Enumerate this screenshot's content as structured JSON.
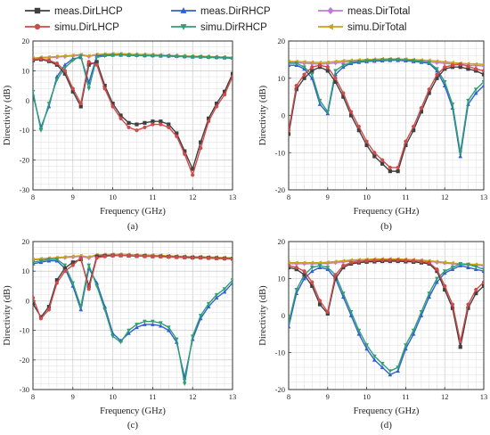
{
  "legend": [
    {
      "label": "meas.DirLHCP",
      "color": "#404040",
      "marker": "square"
    },
    {
      "label": "meas.DirRHCP",
      "color": "#2f5fd0",
      "marker": "triangle"
    },
    {
      "label": "meas.DirTotal",
      "color": "#c07ad8",
      "marker": "diamond"
    },
    {
      "label": "simu.DirLHCP",
      "color": "#d04a4a",
      "marker": "circle"
    },
    {
      "label": "simu.DirRHCP",
      "color": "#2e9f72",
      "marker": "triangle-down"
    },
    {
      "label": "simu.DirTotal",
      "color": "#c9a21a",
      "marker": "triangle-left"
    }
  ],
  "chart_data": [
    {
      "type": "line",
      "caption": "(a)",
      "xlabel": "Frequency (GHz)",
      "ylabel": "Directivity (dB)",
      "xlim": [
        8,
        13
      ],
      "ylim": [
        -30,
        20
      ],
      "xticks": [
        "8",
        "9",
        "10",
        "11",
        "12",
        "13"
      ],
      "yticks": [
        "-30",
        "-20",
        "-10",
        "0",
        "10",
        "20"
      ],
      "grid": true,
      "x": [
        8.0,
        8.2,
        8.4,
        8.6,
        8.8,
        9.0,
        9.2,
        9.4,
        9.6,
        9.8,
        10.0,
        10.2,
        10.4,
        10.6,
        10.8,
        11.0,
        11.2,
        11.4,
        11.6,
        11.8,
        12.0,
        12.2,
        12.4,
        12.6,
        12.8,
        13.0
      ],
      "series": [
        {
          "key": "meas_lhcp",
          "values": [
            13.5,
            13.8,
            13.2,
            12,
            9,
            3,
            -2,
            12,
            13,
            5,
            -1,
            -5,
            -7.5,
            -8,
            -7.5,
            -7,
            -7,
            -8,
            -11,
            -17,
            -23,
            -14,
            -6,
            -1,
            3,
            9
          ]
        },
        {
          "key": "simu_lhcp",
          "values": [
            13.8,
            14,
            13.5,
            12.5,
            10,
            4,
            -1,
            13,
            12,
            4,
            -2,
            -6,
            -9,
            -10,
            -9,
            -8,
            -8,
            -9,
            -12,
            -18,
            -25,
            -16,
            -7,
            -2,
            2,
            8
          ]
        },
        {
          "key": "meas_rhcp",
          "values": [
            2,
            -9,
            -2,
            8,
            12,
            14,
            14.5,
            6,
            15,
            15.2,
            15.3,
            15.3,
            15.2,
            15.2,
            15.1,
            15.1,
            15,
            15,
            14.9,
            14.8,
            14.7,
            14.7,
            14.6,
            14.5,
            14.4,
            14.3
          ]
        },
        {
          "key": "simu_rhcp",
          "values": [
            3,
            -10,
            -1,
            7,
            11,
            13.5,
            15,
            4,
            14.5,
            15,
            15.2,
            15.3,
            15.2,
            15.1,
            15.1,
            15,
            15,
            14.9,
            14.8,
            14.7,
            14.6,
            14.6,
            14.5,
            14.4,
            14.3,
            14.2
          ]
        },
        {
          "key": "meas_total",
          "values": [
            14,
            14.3,
            14.4,
            14.6,
            14.8,
            15,
            15.2,
            14.8,
            15.3,
            15.4,
            15.5,
            15.5,
            15.4,
            15.4,
            15.3,
            15.2,
            15.1,
            15,
            15,
            14.9,
            14.8,
            14.7,
            14.7,
            14.6,
            14.5,
            14.4
          ]
        },
        {
          "key": "simu_total",
          "values": [
            14.2,
            14.5,
            14.6,
            14.8,
            15,
            15.2,
            15.4,
            15,
            15.5,
            15.6,
            15.7,
            15.7,
            15.6,
            15.5,
            15.5,
            15.4,
            15.3,
            15.2,
            15.1,
            15,
            14.9,
            14.9,
            14.8,
            14.7,
            14.6,
            14.5
          ]
        }
      ]
    },
    {
      "type": "line",
      "caption": "(b)",
      "xlabel": "Frequency (GHz)",
      "ylabel": "Directivity (dB)",
      "xlim": [
        8,
        13
      ],
      "ylim": [
        -20,
        20
      ],
      "xticks": [
        "8",
        "9",
        "10",
        "11",
        "12",
        "13"
      ],
      "yticks": [
        "-20",
        "-10",
        "0",
        "10",
        "20"
      ],
      "grid": true,
      "x": [
        8.0,
        8.2,
        8.4,
        8.6,
        8.8,
        9.0,
        9.2,
        9.4,
        9.6,
        9.8,
        10.0,
        10.2,
        10.4,
        10.6,
        10.8,
        11.0,
        11.2,
        11.4,
        11.6,
        11.8,
        12.0,
        12.2,
        12.4,
        12.6,
        12.8,
        13.0
      ],
      "series": [
        {
          "key": "meas_lhcp",
          "values": [
            -5,
            7,
            10,
            12,
            13,
            12,
            9,
            5,
            0,
            -4,
            -8,
            -11,
            -13,
            -15,
            -15,
            -8,
            -4,
            1,
            6,
            10,
            12.5,
            13,
            13,
            12.5,
            12,
            11
          ]
        },
        {
          "key": "simu_lhcp",
          "values": [
            -4,
            8,
            11,
            13,
            13.5,
            13,
            10,
            6,
            1,
            -3,
            -7,
            -10,
            -12,
            -14,
            -14,
            -7,
            -3,
            2,
            7,
            11,
            13,
            13.5,
            13.8,
            13.2,
            12.5,
            12
          ]
        },
        {
          "key": "meas_rhcp",
          "values": [
            13.5,
            13.5,
            12.5,
            10,
            3,
            0.5,
            11,
            13,
            14,
            14.3,
            14.5,
            14.6,
            14.7,
            14.8,
            14.8,
            14.7,
            14.5,
            14.3,
            14,
            12,
            8,
            2,
            -11,
            3,
            6,
            8
          ]
        },
        {
          "key": "simu_rhcp",
          "values": [
            14,
            14,
            13,
            11,
            4,
            1,
            12,
            13.5,
            14.2,
            14.5,
            14.7,
            14.8,
            14.9,
            15,
            15,
            14.9,
            14.7,
            14.5,
            14.2,
            12.5,
            9,
            3,
            -10,
            4,
            7,
            9
          ]
        },
        {
          "key": "meas_total",
          "values": [
            14.2,
            14.2,
            14,
            13.9,
            13.8,
            13.9,
            14.1,
            14.3,
            14.5,
            14.6,
            14.7,
            14.8,
            14.9,
            15,
            15,
            14.9,
            14.8,
            14.6,
            14.4,
            14.2,
            14,
            13.8,
            13.6,
            13.5,
            13.4,
            13.3
          ]
        },
        {
          "key": "simu_total",
          "values": [
            14.5,
            14.5,
            14.4,
            14.3,
            14.2,
            14.3,
            14.5,
            14.7,
            14.8,
            14.9,
            15,
            15.1,
            15.2,
            15.2,
            15.2,
            15.1,
            15,
            14.9,
            14.8,
            14.6,
            14.4,
            14.2,
            14,
            13.9,
            13.8,
            13.7
          ]
        }
      ]
    },
    {
      "type": "line",
      "caption": "(c)",
      "xlabel": "Frequency (GHz)",
      "ylabel": "Directivity (dB)",
      "xlim": [
        8,
        13
      ],
      "ylim": [
        -30,
        20
      ],
      "xticks": [
        "8",
        "9",
        "10",
        "11",
        "12",
        "13"
      ],
      "yticks": [
        "-30",
        "-20",
        "-10",
        "0",
        "10",
        "20"
      ],
      "grid": true,
      "x": [
        8.0,
        8.2,
        8.4,
        8.6,
        8.8,
        9.0,
        9.2,
        9.4,
        9.6,
        9.8,
        10.0,
        10.2,
        10.4,
        10.6,
        10.8,
        11.0,
        11.2,
        11.4,
        11.6,
        11.8,
        12.0,
        12.2,
        12.4,
        12.6,
        12.8,
        13.0
      ],
      "series": [
        {
          "key": "meas_lhcp",
          "values": [
            -1,
            -5.5,
            -2,
            7,
            11,
            13,
            14,
            5,
            15,
            15.2,
            15.3,
            15.3,
            15.2,
            15.1,
            15.1,
            15,
            15,
            14.9,
            14.8,
            14.7,
            14.6,
            14.6,
            14.5,
            14.4,
            14.3,
            14.2
          ]
        },
        {
          "key": "simu_lhcp",
          "values": [
            1,
            -6,
            -3,
            6,
            10,
            12,
            14.5,
            4,
            14.5,
            15,
            15.2,
            15.3,
            15.2,
            15.1,
            15,
            15,
            14.9,
            14.8,
            14.7,
            14.6,
            14.5,
            14.5,
            14.4,
            14.3,
            14.2,
            14.1
          ]
        },
        {
          "key": "meas_rhcp",
          "values": [
            12.5,
            13,
            13.5,
            13.5,
            11,
            5,
            -3,
            11,
            6,
            -2,
            -11,
            -13.5,
            -11,
            -9,
            -8,
            -8,
            -8.5,
            -10,
            -14,
            -26,
            -13,
            -6,
            -2,
            1,
            3,
            6
          ]
        },
        {
          "key": "simu_rhcp",
          "values": [
            13,
            13.5,
            14,
            14,
            12,
            6,
            -2,
            12,
            5,
            -3,
            -12,
            -14,
            -10,
            -8,
            -7,
            -7,
            -7.5,
            -9,
            -13,
            -28,
            -12,
            -5,
            -1,
            2,
            4,
            7
          ]
        },
        {
          "key": "meas_total",
          "values": [
            13.8,
            14,
            14.2,
            14.4,
            14.6,
            14.8,
            15,
            14.5,
            15.3,
            15.4,
            15.5,
            15.5,
            15.4,
            15.3,
            15.3,
            15.2,
            15.1,
            15,
            14.9,
            14.8,
            14.7,
            14.7,
            14.6,
            14.5,
            14.4,
            14.3
          ]
        },
        {
          "key": "simu_total",
          "values": [
            14,
            14.2,
            14.4,
            14.6,
            14.8,
            15,
            15.2,
            14.8,
            15.5,
            15.6,
            15.7,
            15.7,
            15.6,
            15.5,
            15.5,
            15.4,
            15.3,
            15.2,
            15.1,
            15,
            14.9,
            14.9,
            14.8,
            14.7,
            14.6,
            14.5
          ]
        }
      ]
    },
    {
      "type": "line",
      "caption": "(d)",
      "xlabel": "Frequency (GHz)",
      "ylabel": "Directivity (dB)",
      "xlim": [
        8,
        13
      ],
      "ylim": [
        -20,
        20
      ],
      "xticks": [
        "8",
        "9",
        "10",
        "11",
        "12",
        "13"
      ],
      "yticks": [
        "-20",
        "-10",
        "0",
        "10",
        "20"
      ],
      "grid": true,
      "x": [
        8.0,
        8.2,
        8.4,
        8.6,
        8.8,
        9.0,
        9.2,
        9.4,
        9.6,
        9.8,
        10.0,
        10.2,
        10.4,
        10.6,
        10.8,
        11.0,
        11.2,
        11.4,
        11.6,
        11.8,
        12.0,
        12.2,
        12.4,
        12.6,
        12.8,
        13.0
      ],
      "series": [
        {
          "key": "meas_lhcp",
          "values": [
            13,
            12.5,
            11,
            8,
            3,
            0.5,
            10,
            13,
            14,
            14.3,
            14.5,
            14.6,
            14.7,
            14.7,
            14.7,
            14.6,
            14.5,
            14.3,
            14,
            12,
            7,
            2,
            -8.5,
            2,
            6,
            8
          ]
        },
        {
          "key": "simu_lhcp",
          "values": [
            13.5,
            13,
            12,
            9,
            4,
            1,
            11,
            13.5,
            14.3,
            14.6,
            14.8,
            14.9,
            15,
            15,
            15,
            14.9,
            14.8,
            14.6,
            14.3,
            12.5,
            8,
            3,
            -7,
            3,
            7,
            9
          ]
        },
        {
          "key": "meas_rhcp",
          "values": [
            -3,
            6,
            10,
            12,
            13,
            12.5,
            10,
            5,
            0,
            -5,
            -9,
            -12,
            -14,
            -16,
            -15,
            -9,
            -5,
            0,
            5,
            9,
            11.5,
            12.5,
            13.5,
            13,
            12.5,
            12
          ]
        },
        {
          "key": "simu_rhcp",
          "values": [
            -2,
            7,
            11,
            13,
            13.5,
            13,
            11,
            6,
            1,
            -4,
            -8,
            -11,
            -13,
            -15,
            -14,
            -8,
            -4,
            1,
            6,
            10,
            12,
            13,
            14,
            13.8,
            13.2,
            12.5
          ]
        },
        {
          "key": "meas_total",
          "values": [
            14,
            14,
            14,
            14,
            14,
            14.1,
            14.3,
            14.5,
            14.7,
            14.8,
            14.9,
            15,
            15,
            15.1,
            15.1,
            15,
            14.9,
            14.8,
            14.6,
            14.4,
            14.2,
            14,
            13.8,
            13.7,
            13.6,
            13.5
          ]
        },
        {
          "key": "simu_total",
          "values": [
            14.3,
            14.3,
            14.3,
            14.3,
            14.3,
            14.4,
            14.6,
            14.8,
            15,
            15.1,
            15.2,
            15.3,
            15.3,
            15.3,
            15.3,
            15.2,
            15.1,
            15,
            14.8,
            14.6,
            14.4,
            14.2,
            14,
            13.9,
            13.8,
            13.7
          ]
        }
      ]
    }
  ]
}
